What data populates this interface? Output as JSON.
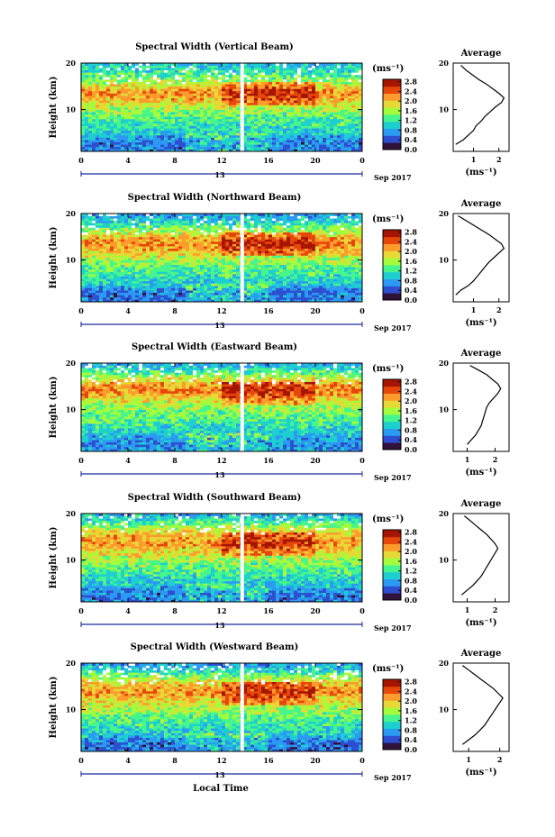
{
  "figure": {
    "xlabel": "Local Time",
    "colorbar_unit": "(ms⁻¹)",
    "colorbar_ticks": [
      "2.8",
      "2.4",
      "2.0",
      "1.6",
      "1.2",
      "0.8",
      "0.4",
      "0.0"
    ],
    "colorbar_range": [
      0.0,
      2.9
    ],
    "date_marker": "13",
    "date_label": "Sep 2017",
    "profile_title": "Average",
    "profile_xlabel": "(ms⁻¹)",
    "colormap": [
      "#30123b",
      "#2e4fd0",
      "#2b9af3",
      "#1ecfd0",
      "#46f58b",
      "#a4fc3c",
      "#e7d935",
      "#fe9b2d",
      "#e6470b",
      "#a61402"
    ]
  },
  "chart_data": [
    {
      "type": "heatmap",
      "title": "Spectral Width (Vertical Beam)",
      "ylabel": "Height (km)",
      "x_ticks": [
        "0",
        "4",
        "8",
        "12",
        "16",
        "20",
        "0"
      ],
      "xlim": [
        0,
        24
      ],
      "y_ticks": [
        "20",
        "10"
      ],
      "ylim": [
        1,
        20
      ],
      "height_profile": [
        [
          3,
          0.6
        ],
        [
          5,
          1.0
        ],
        [
          8,
          1.3
        ],
        [
          10,
          1.6
        ],
        [
          12,
          2.0
        ],
        [
          14,
          2.2
        ],
        [
          16,
          1.6
        ],
        [
          18,
          1.2
        ],
        [
          20,
          0.9
        ]
      ],
      "profile": {
        "title": "Average",
        "type": "line",
        "x_ticks": [
          "1",
          "2"
        ],
        "xlim": [
          0.2,
          2.4
        ],
        "ylim": [
          1,
          20
        ],
        "y_ticks": [
          "20",
          "10"
        ],
        "x": [
          0.3,
          0.6,
          0.8,
          1.0,
          1.1,
          1.3,
          1.45,
          1.65,
          1.85,
          2.1,
          2.2,
          2.0,
          1.75,
          1.5,
          1.2,
          0.95,
          0.7,
          0.5
        ],
        "y": [
          2.5,
          3.5,
          4.5,
          5.5,
          6.5,
          7.5,
          8.5,
          9.5,
          10.5,
          11.5,
          12.5,
          13.5,
          14.5,
          15.5,
          16.5,
          17.5,
          18.5,
          19.5
        ]
      }
    },
    {
      "type": "heatmap",
      "title": "Spectral Width (Northward Beam)",
      "ylabel": "Height (km)",
      "x_ticks": [
        "0",
        "4",
        "8",
        "12",
        "16",
        "20",
        "0"
      ],
      "xlim": [
        0,
        24
      ],
      "y_ticks": [
        "20",
        "10"
      ],
      "ylim": [
        1,
        20
      ],
      "height_profile": [
        [
          3,
          0.6
        ],
        [
          5,
          1.0
        ],
        [
          8,
          1.3
        ],
        [
          10,
          1.6
        ],
        [
          12,
          2.0
        ],
        [
          14,
          2.3
        ],
        [
          16,
          1.7
        ],
        [
          18,
          1.1
        ],
        [
          20,
          0.7
        ]
      ],
      "profile": {
        "title": "Average",
        "type": "line",
        "x_ticks": [
          "1",
          "2"
        ],
        "xlim": [
          0.2,
          2.4
        ],
        "ylim": [
          1,
          20
        ],
        "y_ticks": [
          "20",
          "10"
        ],
        "x": [
          0.3,
          0.5,
          0.8,
          1.0,
          1.15,
          1.3,
          1.45,
          1.6,
          1.8,
          2.0,
          2.2,
          2.1,
          1.85,
          1.6,
          1.3,
          1.0,
          0.7,
          0.4
        ],
        "y": [
          2.5,
          3.5,
          4.5,
          5.5,
          6.5,
          7.5,
          8.5,
          9.5,
          10.5,
          11.5,
          12.5,
          13.5,
          14.5,
          15.5,
          16.5,
          17.5,
          18.5,
          19.5
        ]
      }
    },
    {
      "type": "heatmap",
      "title": "Spectral Width (Eastward Beam)",
      "ylabel": "Height (km)",
      "x_ticks": [
        "0",
        "4",
        "8",
        "12",
        "16",
        "20",
        "0"
      ],
      "xlim": [
        0,
        24
      ],
      "y_ticks": [
        "20",
        "10"
      ],
      "ylim": [
        1,
        20
      ],
      "height_profile": [
        [
          3,
          0.7
        ],
        [
          5,
          1.0
        ],
        [
          8,
          1.3
        ],
        [
          10,
          1.5
        ],
        [
          12,
          1.8
        ],
        [
          14,
          2.3
        ],
        [
          16,
          2.0
        ],
        [
          18,
          1.3
        ],
        [
          20,
          0.8
        ]
      ],
      "profile": {
        "title": "Average",
        "type": "line",
        "x_ticks": [
          "1",
          "2"
        ],
        "xlim": [
          0.5,
          2.5
        ],
        "ylim": [
          1,
          20
        ],
        "y_ticks": [
          "20",
          "10"
        ],
        "x": [
          1.0,
          1.15,
          1.3,
          1.4,
          1.5,
          1.55,
          1.6,
          1.65,
          1.7,
          1.8,
          1.95,
          2.1,
          2.2,
          2.1,
          1.9,
          1.7,
          1.4,
          1.1
        ],
        "y": [
          2.5,
          3.5,
          4.5,
          5.5,
          6.5,
          7.5,
          8.5,
          9.5,
          10.5,
          11.5,
          12.5,
          13.5,
          14.5,
          15.5,
          16.5,
          17.5,
          18.5,
          19.5
        ]
      }
    },
    {
      "type": "heatmap",
      "title": "Spectral Width (Southward Beam)",
      "ylabel": "Height (km)",
      "x_ticks": [
        "0",
        "4",
        "8",
        "12",
        "16",
        "20",
        "0"
      ],
      "xlim": [
        0,
        24
      ],
      "y_ticks": [
        "20",
        "10"
      ],
      "ylim": [
        1,
        20
      ],
      "height_profile": [
        [
          3,
          0.6
        ],
        [
          5,
          1.0
        ],
        [
          8,
          1.3
        ],
        [
          10,
          1.6
        ],
        [
          12,
          1.9
        ],
        [
          14,
          2.2
        ],
        [
          16,
          1.9
        ],
        [
          18,
          1.3
        ],
        [
          20,
          0.8
        ]
      ],
      "profile": {
        "title": "Average",
        "type": "line",
        "x_ticks": [
          "1",
          "2"
        ],
        "xlim": [
          0.5,
          2.5
        ],
        "ylim": [
          1,
          20
        ],
        "y_ticks": [
          "20",
          "10"
        ],
        "x": [
          0.8,
          1.0,
          1.2,
          1.35,
          1.5,
          1.6,
          1.7,
          1.8,
          1.9,
          2.0,
          2.1,
          2.0,
          1.85,
          1.7,
          1.5,
          1.3,
          1.1,
          0.9
        ],
        "y": [
          2.5,
          3.5,
          4.5,
          5.5,
          6.5,
          7.5,
          8.5,
          9.5,
          10.5,
          11.5,
          12.5,
          13.5,
          14.5,
          15.5,
          16.5,
          17.5,
          18.5,
          19.5
        ]
      }
    },
    {
      "type": "heatmap",
      "title": "Spectral Width (Westward Beam)",
      "ylabel": "Height (km)",
      "x_ticks": [
        "0",
        "4",
        "8",
        "12",
        "16",
        "20",
        "0"
      ],
      "xlim": [
        0,
        24
      ],
      "y_ticks": [
        "20",
        "10"
      ],
      "ylim": [
        1,
        20
      ],
      "height_profile": [
        [
          3,
          0.6
        ],
        [
          5,
          1.0
        ],
        [
          8,
          1.3
        ],
        [
          10,
          1.6
        ],
        [
          12,
          1.9
        ],
        [
          14,
          2.2
        ],
        [
          16,
          1.9
        ],
        [
          18,
          1.2
        ],
        [
          20,
          0.7
        ]
      ],
      "profile": {
        "title": "Average",
        "type": "line",
        "x_ticks": [
          "1",
          "2"
        ],
        "xlim": [
          0.5,
          2.3
        ],
        "ylim": [
          1,
          20
        ],
        "y_ticks": [
          "20",
          "10"
        ],
        "x": [
          0.8,
          1.0,
          1.2,
          1.35,
          1.5,
          1.6,
          1.7,
          1.8,
          1.9,
          2.0,
          2.1,
          1.95,
          1.8,
          1.6,
          1.4,
          1.2,
          1.0,
          0.8
        ],
        "y": [
          2.5,
          3.5,
          4.5,
          5.5,
          6.5,
          7.5,
          8.5,
          9.5,
          10.5,
          11.5,
          12.5,
          13.5,
          14.5,
          15.5,
          16.5,
          17.5,
          18.5,
          19.5
        ]
      }
    }
  ]
}
